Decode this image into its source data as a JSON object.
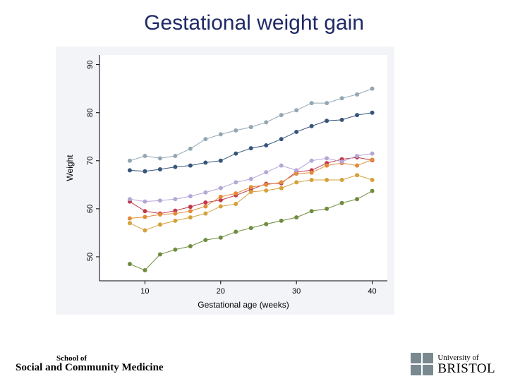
{
  "title": "Gestational weight gain",
  "footer": {
    "left_line1": "School of",
    "left_line2": "Social and Community Medicine",
    "right_line1": "University of",
    "right_line2": "BRISTOL"
  },
  "chart": {
    "type": "line",
    "background_color": "#f2f4f7",
    "plot_background": "#ffffff",
    "axis_color": "#000000",
    "tick_color": "#000000",
    "label_color": "#000000",
    "font_family": "Arial",
    "xlabel": "Gestational age (weeks)",
    "ylabel": "Weight",
    "xlabel_fontsize": 12,
    "ylabel_fontsize": 12,
    "tick_fontsize": 11,
    "xlim": [
      4,
      42
    ],
    "ylim": [
      45,
      92
    ],
    "xticks": [
      10,
      20,
      30,
      40
    ],
    "yticks": [
      50,
      60,
      70,
      80,
      90
    ],
    "line_width": 1.0,
    "marker_radius": 3.0,
    "series": [
      {
        "name": "series-olive",
        "color": "#6f8c3f",
        "x": [
          8,
          10,
          12,
          14,
          16,
          18,
          20,
          22,
          24,
          26,
          28,
          30,
          32,
          34,
          36,
          38,
          40
        ],
        "y": [
          48.5,
          47.2,
          50.5,
          51.5,
          52.2,
          53.5,
          54.0,
          55.2,
          56.0,
          56.8,
          57.5,
          58.2,
          59.5,
          60.0,
          61.2,
          62.0,
          63.7
        ]
      },
      {
        "name": "series-red",
        "color": "#c1374b",
        "x": [
          8,
          10,
          12,
          14,
          16,
          18,
          20,
          22,
          24,
          26,
          28,
          30,
          32,
          34,
          36,
          38,
          40
        ],
        "y": [
          61.5,
          59.5,
          59.0,
          59.6,
          60.4,
          61.3,
          61.8,
          62.8,
          64.0,
          65.2,
          65.3,
          67.7,
          68.0,
          69.5,
          70.3,
          70.7,
          70.1
        ]
      },
      {
        "name": "series-gold",
        "color": "#d4a23b",
        "x": [
          8,
          10,
          12,
          14,
          16,
          18,
          20,
          22,
          24,
          26,
          28,
          30,
          32,
          34,
          36,
          38,
          40
        ],
        "y": [
          57.0,
          55.5,
          56.7,
          57.5,
          58.2,
          59.0,
          60.5,
          61.0,
          63.5,
          63.8,
          64.3,
          65.5,
          66.0,
          66.0,
          66.0,
          67.0,
          66.0
        ]
      },
      {
        "name": "series-orange",
        "color": "#e38b3a",
        "x": [
          8,
          10,
          12,
          14,
          16,
          18,
          20,
          22,
          24,
          26,
          28,
          30,
          32,
          34,
          36,
          38,
          40
        ],
        "y": [
          58.0,
          58.3,
          58.8,
          59.0,
          59.5,
          60.5,
          62.5,
          63.2,
          64.5,
          65.0,
          65.5,
          67.3,
          67.5,
          69.0,
          69.5,
          69.0,
          70.2
        ]
      },
      {
        "name": "series-lavender",
        "color": "#b5a7d6",
        "x": [
          8,
          10,
          12,
          14,
          16,
          18,
          20,
          22,
          24,
          26,
          28,
          30,
          32,
          34,
          36,
          38,
          40
        ],
        "y": [
          62.0,
          61.5,
          61.7,
          62.0,
          62.6,
          63.4,
          64.3,
          65.5,
          66.2,
          67.6,
          69.0,
          68.0,
          70.0,
          70.5,
          69.8,
          71.0,
          71.5
        ]
      },
      {
        "name": "series-navy",
        "color": "#37557c",
        "x": [
          8,
          10,
          12,
          14,
          16,
          18,
          20,
          22,
          24,
          26,
          28,
          30,
          32,
          34,
          36,
          38,
          40
        ],
        "y": [
          68.0,
          67.8,
          68.2,
          68.7,
          69.0,
          69.6,
          70.0,
          71.5,
          72.6,
          73.2,
          74.5,
          76.0,
          77.2,
          78.3,
          78.5,
          79.5,
          80.0
        ]
      },
      {
        "name": "series-grayblue",
        "color": "#93a7b3",
        "x": [
          8,
          10,
          12,
          14,
          16,
          18,
          20,
          22,
          24,
          26,
          28,
          30,
          32,
          34,
          36,
          38,
          40
        ],
        "y": [
          70.0,
          71.0,
          70.5,
          71.0,
          72.5,
          74.5,
          75.5,
          76.3,
          77.0,
          78.0,
          79.5,
          80.5,
          82.0,
          82.0,
          83.0,
          83.8,
          85.0
        ]
      }
    ]
  }
}
